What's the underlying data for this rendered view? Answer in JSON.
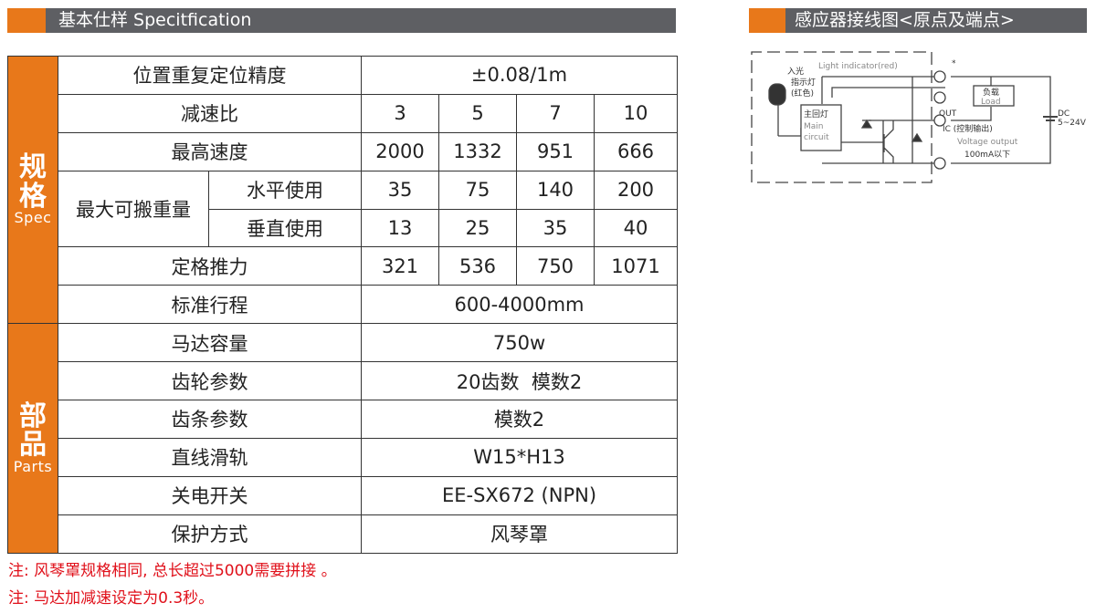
{
  "spec_header": {
    "title": "基本仕样 Specitfication"
  },
  "wiring_header": {
    "title": "感应器接线图<原点及端点>"
  },
  "table": {
    "groups": [
      {
        "cn": "规",
        "cn2": "格",
        "en": "Spec"
      },
      {
        "cn": "部",
        "cn2": "品",
        "en": "Parts"
      }
    ],
    "rows": [
      {
        "label": "位置重复定位精度",
        "value": "±0.08/1m"
      },
      {
        "label": "减速比",
        "values": [
          "3",
          "5",
          "7",
          "10"
        ]
      },
      {
        "label": "最高速度",
        "values": [
          "2000",
          "1332",
          "951",
          "666"
        ]
      },
      {
        "label": "最大可搬重量",
        "sub": "水平使用",
        "values": [
          "35",
          "75",
          "140",
          "200"
        ]
      },
      {
        "sub": "垂直使用",
        "values": [
          "13",
          "25",
          "35",
          "40"
        ]
      },
      {
        "label": "定格推力",
        "values": [
          "321",
          "536",
          "750",
          "1071"
        ]
      },
      {
        "label": "标准行程",
        "value": "600-4000mm"
      },
      {
        "label": "马达容量",
        "value": "750w"
      },
      {
        "label": "齿轮参数",
        "value": "20齿数  模数2"
      },
      {
        "label": "齿条参数",
        "value": "模数2"
      },
      {
        "label": "直线滑轨",
        "value": "W15*H13"
      },
      {
        "label": "关电开关",
        "value": "EE-SX672 (NPN)"
      },
      {
        "label": "保护方式",
        "value": "风琴罩"
      }
    ]
  },
  "notes": [
    "注: 风琴罩规格相同, 总长超过5000需要拼接 。",
    "注: 马达加减速设定为0.3秒。"
  ],
  "diagram": {
    "light_indicator": "Light indicator(red)",
    "lamp_cn1": "入光",
    "lamp_cn2": "指示灯",
    "lamp_cn3": "(红色)",
    "main_cn": "主回灯",
    "main_en1": "Main",
    "main_en2": "circuit",
    "load_cn": "负载",
    "load_en": "Load",
    "out": "OUT",
    "ic": "IC (控制输出)",
    "voltage": "Voltage output",
    "current": "100mA以下",
    "dc": "DC",
    "dc_range": "5~24V",
    "star": "*"
  },
  "colors": {
    "accent": "#e8781a",
    "header_bg": "#5e5f63",
    "note": "#e0101a"
  }
}
